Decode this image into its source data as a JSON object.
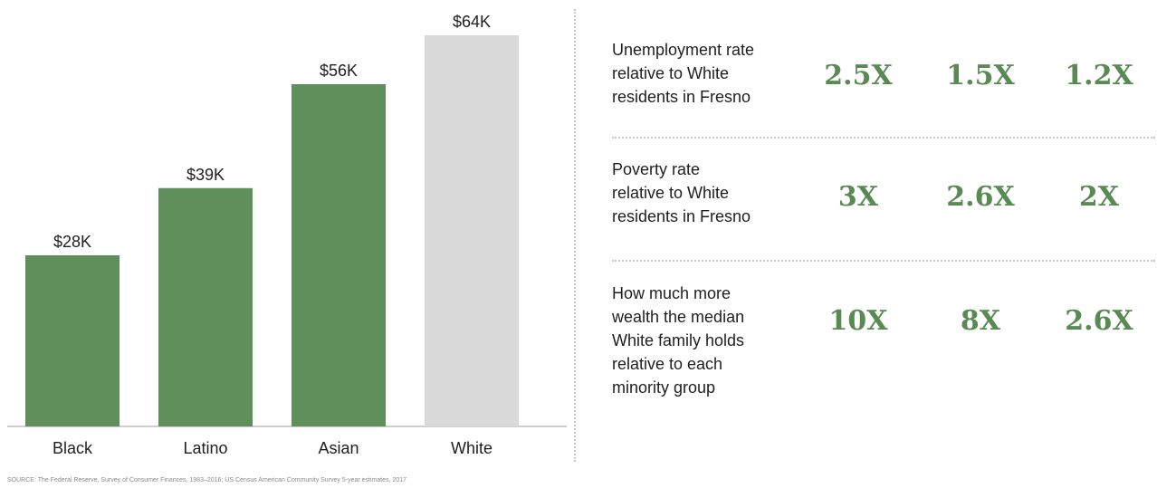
{
  "chart_data": {
    "type": "bar",
    "categories": [
      "Black",
      "Latino",
      "Asian",
      "White"
    ],
    "values": [
      28,
      39,
      56,
      64
    ],
    "data_labels": [
      "$28K",
      "$39K",
      "$56K",
      "$64K"
    ],
    "colors": [
      "#5f8f5a",
      "#5f8f5a",
      "#5f8f5a",
      "#d9d9d9"
    ],
    "title": "",
    "xlabel": "",
    "ylabel": "",
    "ylim": [
      0,
      64
    ],
    "grid": false,
    "legend": "none"
  },
  "stats": {
    "rows": [
      {
        "label": "Unemployment rate\nrelative to White\nresidents in Fresno",
        "values": [
          "2.5X",
          "1.5X",
          "1.2X"
        ]
      },
      {
        "label": "Poverty rate\nrelative to White\nresidents in Fresno",
        "values": [
          "3X",
          "2.6X",
          "2X"
        ]
      },
      {
        "label": "How much more\nwealth the median\nWhite family holds\nrelative to each\nminority group",
        "values": [
          "10X",
          "8X",
          "2.6X"
        ]
      }
    ],
    "accent_color": "#5a8a54"
  },
  "source": "SOURCE: The Federal Reserve, Survey of Consumer Finances, 1983–2016; US Census American Community Survey 5-year estimates, 2017"
}
